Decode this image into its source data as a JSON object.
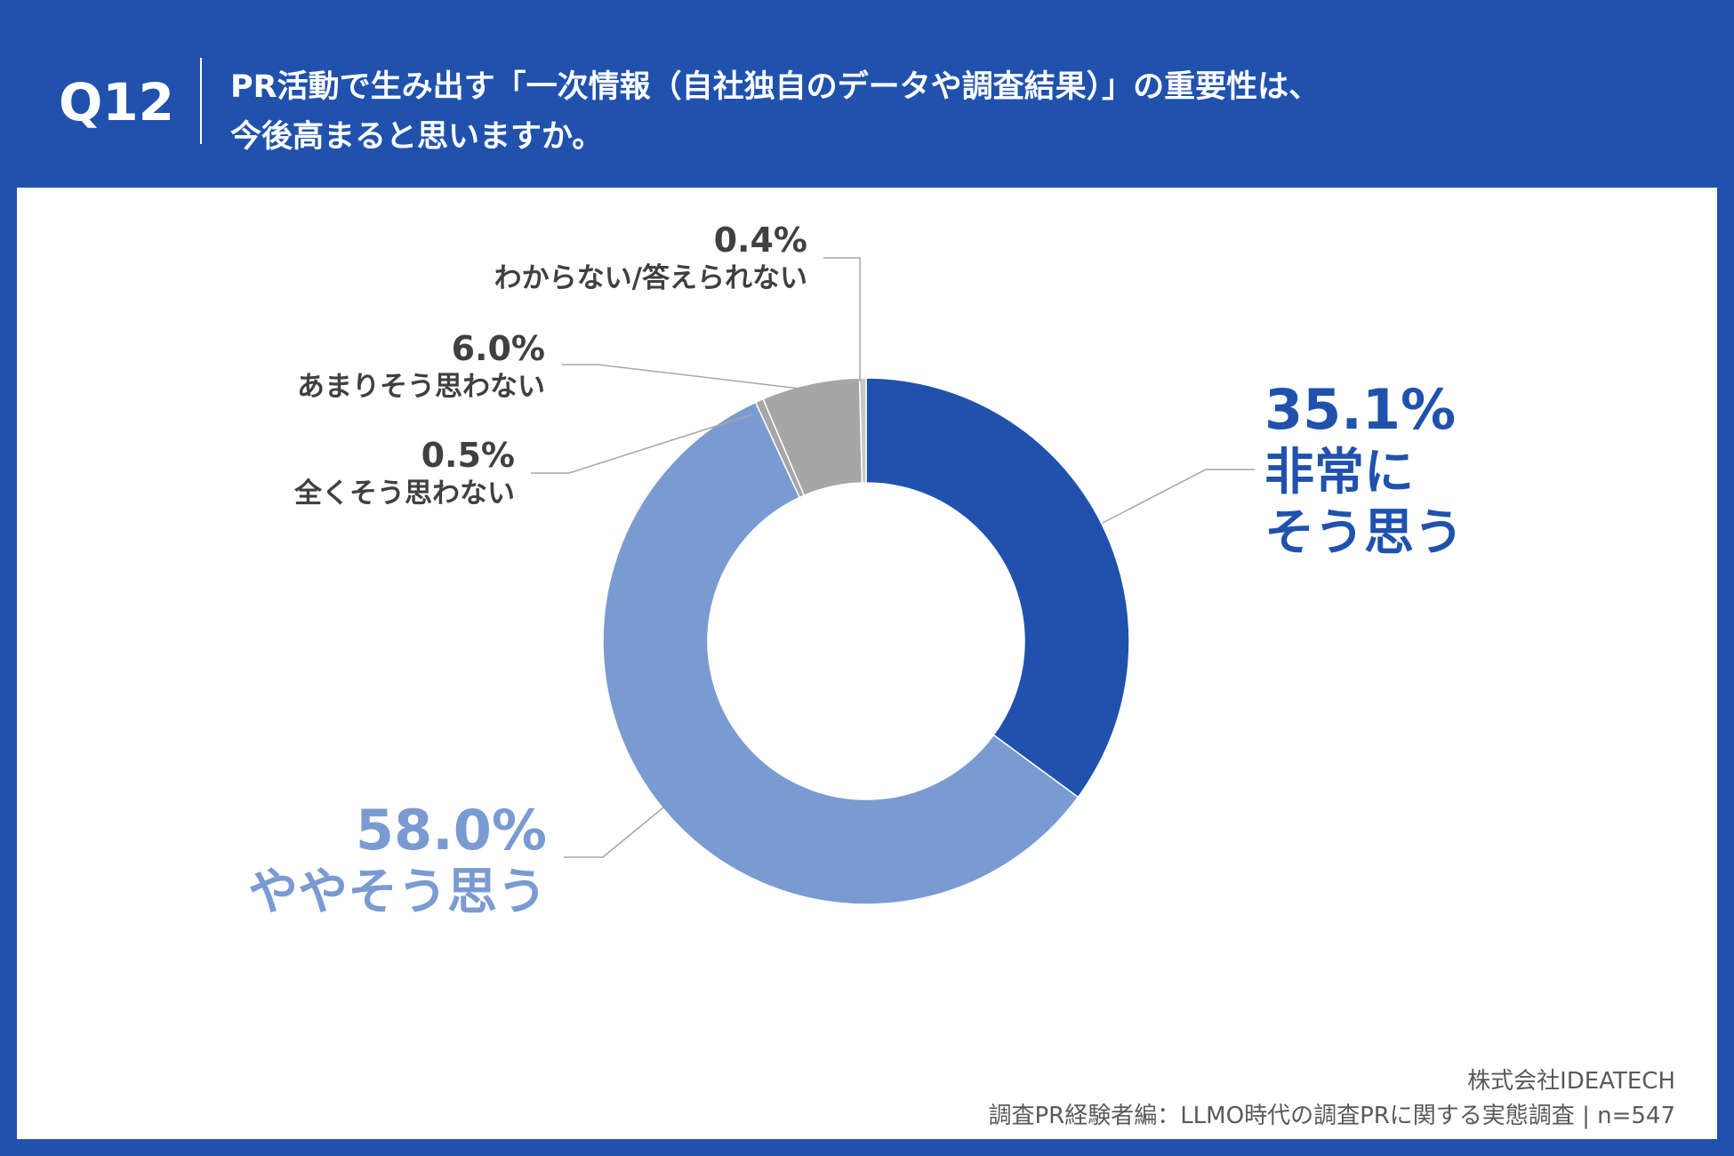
{
  "header": {
    "question_number": "Q12",
    "title_line1": "PR活動で生み出す「一次情報（自社独自のデータや調査結果）」の重要性は、",
    "title_line2": "今後高まると思いますか。"
  },
  "footer": {
    "company": "株式会社IDEATECH",
    "survey": "調査PR経験者編：LLMO時代の調査PRに関する実態調査 | n=547"
  },
  "colors": {
    "background": "#2052ad",
    "very_much": "#2052ad",
    "somewhat": "#7a9bd1",
    "not_at_all": "#a6a6a6",
    "not_much": "#a6a6a6",
    "dont_know": "#c8c8c8"
  },
  "chart_data": {
    "type": "pie",
    "donut": true,
    "slices": [
      {
        "label": "非常にそう思う",
        "value": 35.1,
        "value_label": "35.1%"
      },
      {
        "label": "ややそう思う",
        "value": 58.0,
        "value_label": "58.0%"
      },
      {
        "label": "全くそう思わない",
        "value": 0.5,
        "value_label": "0.5%"
      },
      {
        "label": "あまりそう思わない",
        "value": 6.0,
        "value_label": "6.0%"
      },
      {
        "label": "わからない/答えられない",
        "value": 0.4,
        "value_label": "0.4%"
      }
    ]
  }
}
